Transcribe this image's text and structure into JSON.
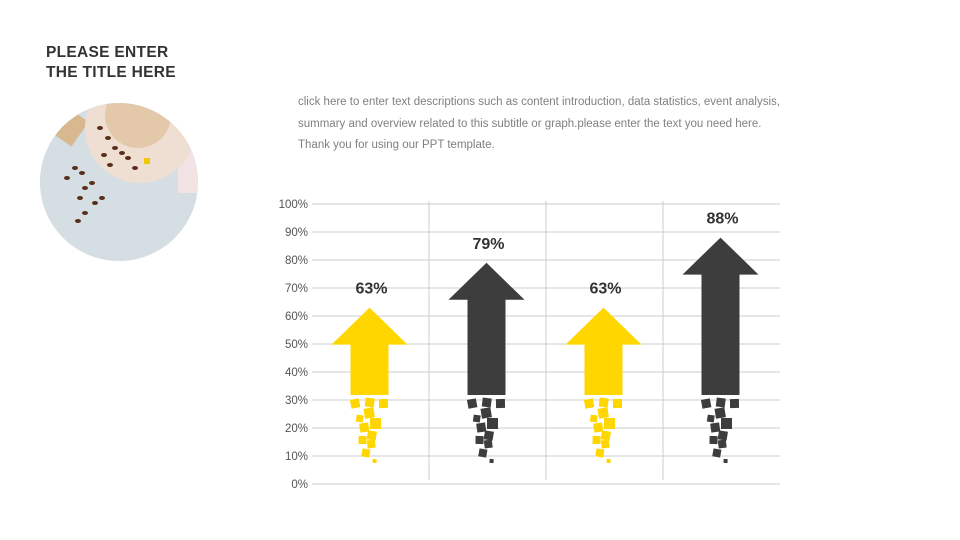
{
  "title_lines": [
    "PLEASE ENTER",
    "THE TITLE HERE"
  ],
  "description_lines": [
    "click here to enter text descriptions such as content introduction, data statistics, event analysis,",
    "summary and overview related to this subtitle or graph.please enter the text you need here.",
    "Thank you for using our PPT template."
  ],
  "colors": {
    "yellow": "#FFD600",
    "dark": "#3D3D3D",
    "grid": "#CCCCCC",
    "text": "#333333"
  },
  "chart_data": {
    "type": "bar",
    "style": "arrow",
    "categories": [
      "",
      "",
      "",
      ""
    ],
    "values": [
      63,
      79,
      63,
      88
    ],
    "data_labels": [
      "63%",
      "79%",
      "63%",
      "88%"
    ],
    "bar_colors": [
      "#FFD600",
      "#3D3D3D",
      "#FFD600",
      "#3D3D3D"
    ],
    "yticks": [
      "0%",
      "10%",
      "20%",
      "30%",
      "40%",
      "50%",
      "60%",
      "70%",
      "80%",
      "90%",
      "100%"
    ],
    "ylim": [
      0,
      100
    ],
    "grid": true
  }
}
